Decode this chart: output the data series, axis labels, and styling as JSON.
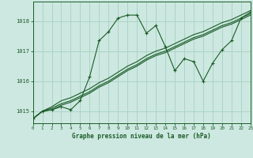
{
  "background_color": "#cde8e0",
  "grid_color": "#aad4c8",
  "line_color": "#1a5c28",
  "title": "Graphe pression niveau de la mer (hPa)",
  "xlim": [
    0,
    23
  ],
  "ylim": [
    1014.6,
    1018.65
  ],
  "yticks": [
    1015,
    1016,
    1017,
    1018
  ],
  "xticks": [
    0,
    1,
    2,
    3,
    4,
    5,
    6,
    7,
    8,
    9,
    10,
    11,
    12,
    13,
    14,
    15,
    16,
    17,
    18,
    19,
    20,
    21,
    22,
    23
  ],
  "series0": [
    1014.75,
    1015.0,
    1015.05,
    1015.15,
    1015.05,
    1015.35,
    1016.15,
    1017.35,
    1017.65,
    1018.1,
    1018.2,
    1018.2,
    1017.6,
    1017.85,
    1017.15,
    1016.35,
    1016.75,
    1016.65,
    1016.0,
    1016.6,
    1017.05,
    1017.35,
    1018.1,
    1018.3
  ],
  "series1": [
    1014.75,
    1015.0,
    1015.15,
    1015.35,
    1015.45,
    1015.6,
    1015.75,
    1015.95,
    1016.1,
    1016.3,
    1016.5,
    1016.65,
    1016.85,
    1017.0,
    1017.1,
    1017.25,
    1017.4,
    1017.55,
    1017.65,
    1017.8,
    1017.95,
    1018.05,
    1018.2,
    1018.35
  ],
  "series2": [
    1014.75,
    1015.0,
    1015.1,
    1015.25,
    1015.35,
    1015.5,
    1015.65,
    1015.85,
    1016.0,
    1016.2,
    1016.4,
    1016.55,
    1016.75,
    1016.9,
    1017.0,
    1017.15,
    1017.3,
    1017.45,
    1017.55,
    1017.7,
    1017.85,
    1017.95,
    1018.1,
    1018.25
  ],
  "series3": [
    1014.75,
    1015.0,
    1015.05,
    1015.2,
    1015.3,
    1015.45,
    1015.6,
    1015.8,
    1015.95,
    1016.15,
    1016.35,
    1016.5,
    1016.7,
    1016.85,
    1016.95,
    1017.1,
    1017.25,
    1017.4,
    1017.5,
    1017.65,
    1017.8,
    1017.9,
    1018.05,
    1018.2
  ]
}
